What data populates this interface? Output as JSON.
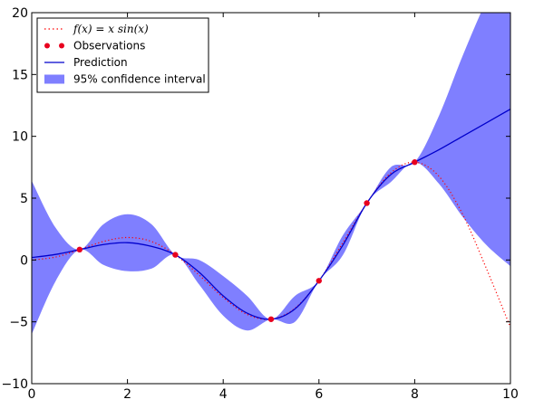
{
  "chart_data": {
    "type": "line",
    "title": "",
    "xlabel": "",
    "ylabel": "",
    "xlim": [
      0,
      10
    ],
    "ylim": [
      -10,
      20
    ],
    "grid": false,
    "legend_position": "top-left",
    "x_ticks": [
      "0",
      "2",
      "4",
      "6",
      "8",
      "10"
    ],
    "y_ticks": [
      "−10",
      "−5",
      "0",
      "5",
      "10",
      "15",
      "20"
    ],
    "legend": [
      {
        "label": "f(x) = x sin(x)",
        "marker": "dotted-line"
      },
      {
        "label": "Observations",
        "marker": "points"
      },
      {
        "label": "Prediction",
        "marker": "line"
      },
      {
        "label": "95% confidence interval",
        "marker": "patch"
      }
    ],
    "colors": {
      "true_function": "#ff0000",
      "observations": "#e8001e",
      "prediction": "#0000cc",
      "confidence_fill": "#7f7fff"
    },
    "series": [
      {
        "name": "f(x) = x sin(x)",
        "style": "dotted",
        "x": [
          0,
          0.5,
          1,
          1.5,
          2,
          2.5,
          3,
          3.5,
          4,
          4.5,
          5,
          5.5,
          6,
          6.5,
          7,
          7.5,
          8,
          8.5,
          9,
          9.5,
          10
        ],
        "y": [
          0,
          0.24,
          0.84,
          1.5,
          1.82,
          1.5,
          0.42,
          -1.23,
          -3.03,
          -4.4,
          -4.79,
          -3.89,
          -1.68,
          1.4,
          4.6,
          7.04,
          7.91,
          6.8,
          3.71,
          -0.71,
          -5.44
        ]
      },
      {
        "name": "Observations",
        "style": "points",
        "x": [
          1,
          3,
          5,
          6,
          7,
          8
        ],
        "y": [
          0.84,
          0.42,
          -4.79,
          -1.68,
          4.6,
          7.91
        ]
      },
      {
        "name": "Prediction",
        "style": "line",
        "x": [
          0,
          0.5,
          1,
          1.5,
          2,
          2.5,
          3,
          3.5,
          4,
          4.5,
          5,
          5.5,
          6,
          6.5,
          7,
          7.5,
          8,
          8.5,
          9,
          9.5,
          10
        ],
        "y": [
          0.2,
          0.45,
          0.84,
          1.25,
          1.4,
          1.1,
          0.42,
          -1.0,
          -2.9,
          -4.3,
          -4.79,
          -3.95,
          -1.68,
          1.2,
          4.6,
          6.9,
          7.91,
          8.9,
          10.0,
          11.1,
          12.2
        ]
      },
      {
        "name": "95% confidence interval",
        "style": "band",
        "x": [
          0,
          0.5,
          1,
          1.5,
          2,
          2.5,
          3,
          3.5,
          4,
          4.5,
          5,
          5.5,
          6,
          6.5,
          7,
          7.5,
          8,
          8.5,
          9,
          9.5,
          10
        ],
        "lower": [
          -6.0,
          -1.7,
          0.84,
          -0.4,
          -0.9,
          -0.7,
          0.42,
          -2.0,
          -4.5,
          -5.7,
          -4.79,
          -5.0,
          -1.68,
          0.4,
          4.6,
          6.3,
          7.91,
          6.2,
          3.5,
          1.2,
          -0.5
        ],
        "upper": [
          6.4,
          2.6,
          0.84,
          2.9,
          3.7,
          2.9,
          0.42,
          0.0,
          -1.3,
          -2.9,
          -4.79,
          -2.9,
          -1.68,
          2.0,
          4.6,
          7.5,
          7.91,
          11.6,
          16.5,
          21.0,
          24.9
        ]
      }
    ]
  }
}
